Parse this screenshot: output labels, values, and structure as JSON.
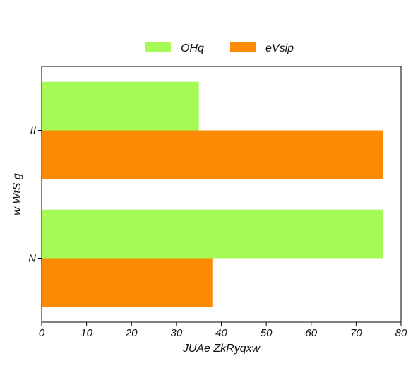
{
  "chart_data": {
    "type": "bar",
    "orientation": "horizontal",
    "categories": [
      "N",
      "II"
    ],
    "series": [
      {
        "name": "OHq",
        "values": [
          76,
          35
        ],
        "color": "#a6fa55"
      },
      {
        "name": "eVsip",
        "values": [
          38,
          76
        ],
        "color": "#fb8a05"
      }
    ],
    "xlabel": "JUAe  ZkRyqxw",
    "ylabel": "w WtS g",
    "xlim": [
      0,
      80
    ],
    "xticks": [
      0,
      10,
      20,
      30,
      40,
      50,
      60,
      70,
      80
    ],
    "grid": false,
    "legend_position": "top-center"
  }
}
